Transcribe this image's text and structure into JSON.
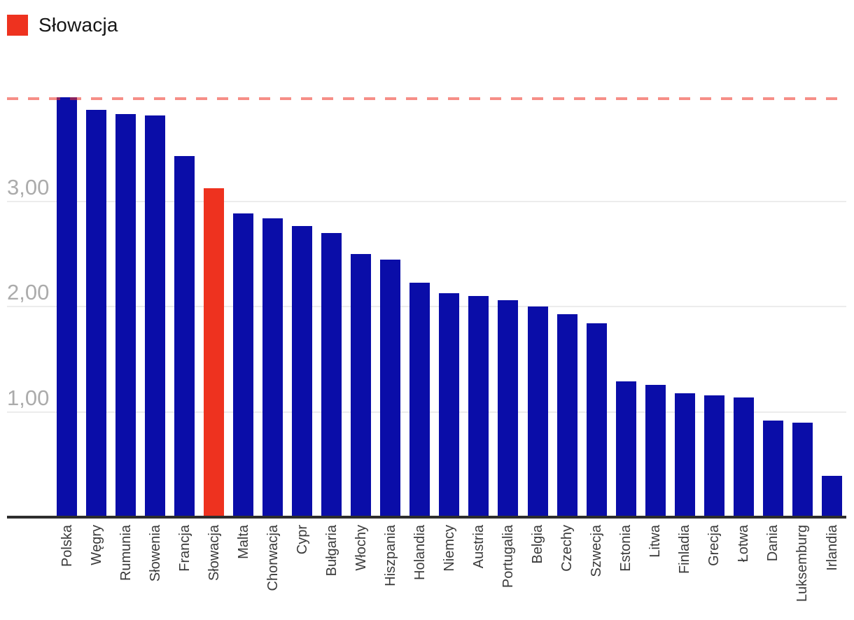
{
  "legend": {
    "label": "Słowacja",
    "swatch_color": "#ee321f"
  },
  "chart_data": {
    "type": "bar",
    "categories": [
      "Polska",
      "Węgry",
      "Rumunia",
      "Słowenia",
      "Francja",
      "Słowacja",
      "Malta",
      "Chorwacja",
      "Cypr",
      "Bułgaria",
      "Włochy",
      "Hiszpania",
      "Holandia",
      "Niemcy",
      "Austria",
      "Portugalia",
      "Belgia",
      "Czechy",
      "Szwecja",
      "Estonia",
      "Litwa",
      "Finladia",
      "Grecja",
      "Łotwa",
      "Dania",
      "Luksemburg",
      "Irlandia"
    ],
    "values": [
      3.99,
      3.87,
      3.83,
      3.82,
      3.43,
      3.13,
      2.89,
      2.84,
      2.77,
      2.7,
      2.5,
      2.45,
      2.23,
      2.13,
      2.1,
      2.06,
      2.0,
      1.93,
      1.84,
      1.29,
      1.26,
      1.18,
      1.16,
      1.14,
      0.92,
      0.9,
      0.39
    ],
    "highlighted_category": "Słowacja",
    "title": "",
    "xlabel": "",
    "ylabel": "",
    "ylim": [
      0,
      4.09
    ],
    "grid": true,
    "legend_position": "top-left",
    "y_ticks": [
      {
        "value": 1,
        "label": "1,00"
      },
      {
        "value": 2,
        "label": "2,00"
      },
      {
        "value": 3,
        "label": "3,00"
      }
    ],
    "reference_line": {
      "value": 3.97,
      "style": "dashed",
      "color": "rgba(238,50,36,0.55)"
    },
    "colors": {
      "bar": "#0a0da8",
      "highlight": "#ee321f",
      "gridline": "#ececec",
      "axis": "#2e2e2e",
      "y_tick_text": "#ababab",
      "x_label_text": "#3a3a3a"
    }
  }
}
